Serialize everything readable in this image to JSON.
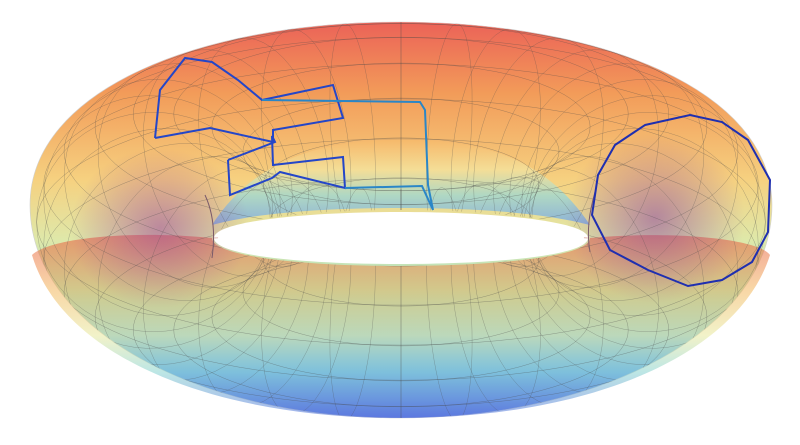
{
  "figure": {
    "subject": "torus",
    "background": "#ffffff",
    "surface_gradient": [
      "#e8473a",
      "#f08a3c",
      "#f4c96a",
      "#d9e49a",
      "#8fd7c2",
      "#5fa9ea",
      "#4f6cdc"
    ],
    "surface_opacity": 0.85,
    "mesh_color": "#4a4a4a",
    "curve_colors": {
      "meridian_right": "#1f2fb0",
      "upper_loop": "#2446c8",
      "lower_loop": "#2446c8",
      "connector_path": "#2a86c7"
    }
  }
}
